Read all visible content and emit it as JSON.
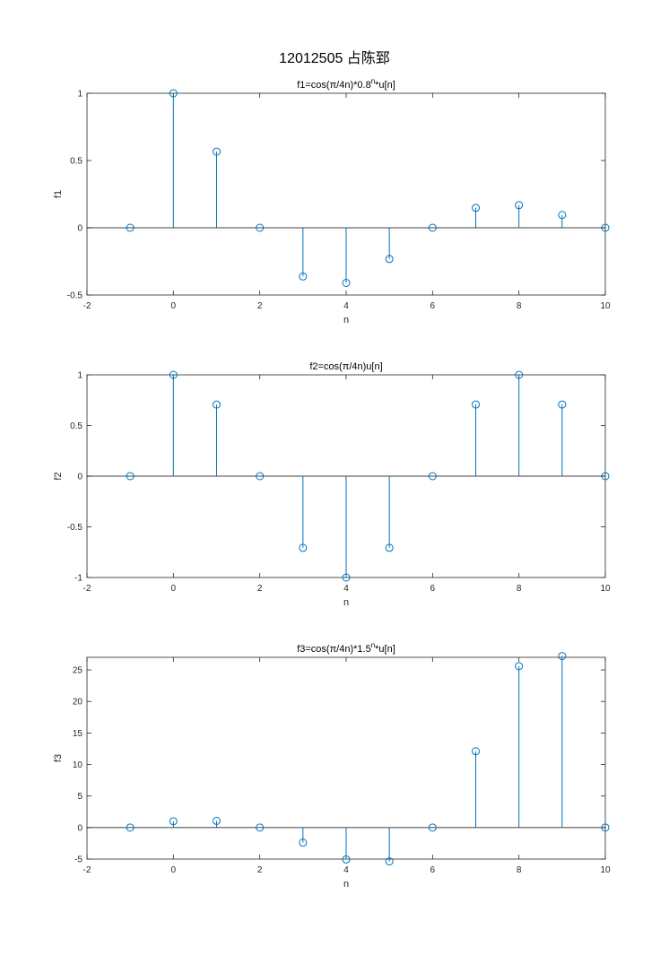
{
  "figure": {
    "title": "12012505 占陈郅"
  },
  "colors": {
    "series": "#0072BD",
    "axes": "#262626",
    "baseline": "#000000",
    "background": "#ffffff"
  },
  "chart_data": [
    {
      "type": "stem",
      "title": "f1=cos(π/4n)*0.8^n*u[n]",
      "title_base": "f1=cos(",
      "title_pi": "π",
      "title_mid": "/4n)*0.8",
      "title_sup": "n",
      "title_tail": "*u[n]",
      "xlabel": "n",
      "ylabel": "f1",
      "xlim": [
        -2,
        10
      ],
      "ylim": [
        -0.5,
        1
      ],
      "xticks": [
        -2,
        0,
        2,
        4,
        6,
        8,
        10
      ],
      "yticks": [
        -0.5,
        0,
        0.5,
        1
      ],
      "x": [
        -1,
        0,
        1,
        2,
        3,
        4,
        5,
        6,
        7,
        8,
        9,
        10
      ],
      "y": [
        0,
        1,
        0.566,
        0,
        -0.362,
        -0.41,
        -0.232,
        0,
        0.148,
        0.168,
        0.095,
        0
      ]
    },
    {
      "type": "stem",
      "title": "f2=cos(π/4n)u[n]",
      "title_base": "f2=cos(",
      "title_pi": "π",
      "title_mid": "/4n)u[n]",
      "title_sup": "",
      "title_tail": "",
      "xlabel": "n",
      "ylabel": "f2",
      "xlim": [
        -2,
        10
      ],
      "ylim": [
        -1,
        1
      ],
      "xticks": [
        -2,
        0,
        2,
        4,
        6,
        8,
        10
      ],
      "yticks": [
        -1,
        -0.5,
        0,
        0.5,
        1
      ],
      "x": [
        -1,
        0,
        1,
        2,
        3,
        4,
        5,
        6,
        7,
        8,
        9,
        10
      ],
      "y": [
        0,
        1,
        0.707,
        0,
        -0.707,
        -1,
        -0.707,
        0,
        0.707,
        1,
        0.707,
        0
      ]
    },
    {
      "type": "stem",
      "title": "f3=cos(π/4n)*1.5^n*u[n]",
      "title_base": "f3=cos(",
      "title_pi": "π",
      "title_mid": "/4n)*1.5",
      "title_sup": "n",
      "title_tail": "*u[n]",
      "xlabel": "n",
      "ylabel": "f3",
      "xlim": [
        -2,
        10
      ],
      "ylim": [
        -5,
        27
      ],
      "xticks": [
        -2,
        0,
        2,
        4,
        6,
        8,
        10
      ],
      "yticks": [
        -5,
        0,
        5,
        10,
        15,
        20,
        25
      ],
      "x": [
        -1,
        0,
        1,
        2,
        3,
        4,
        5,
        6,
        7,
        8,
        9,
        10
      ],
      "y": [
        0,
        1,
        1.06,
        0,
        -2.39,
        -5.06,
        -5.37,
        0,
        12.1,
        25.6,
        27.2,
        0
      ]
    }
  ]
}
